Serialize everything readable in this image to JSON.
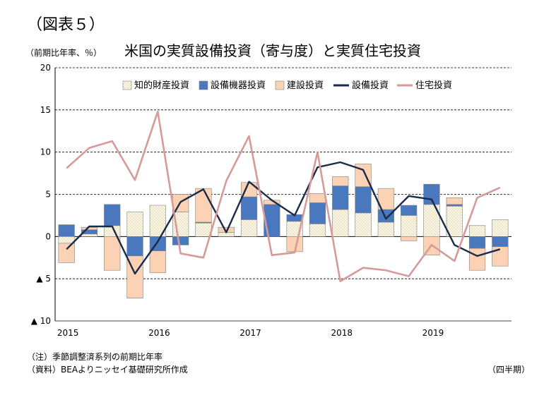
{
  "figure_label": "（図表５）",
  "notes": [
    "（注）季節調整済系列の前期比年率",
    "（資料）BEAよりニッセイ基礎研究所作成"
  ],
  "frequency_label": "（四半期）",
  "colors": {
    "ip": "#fdf8e6",
    "ip_dots": "#a39a62",
    "equipment": "#4a78be",
    "structures": "#fbd2b4",
    "nonres_line": "#1a2a4a",
    "res_line": "#d79a9a",
    "grid": "#000000",
    "bar_border": "#7f7f7f"
  },
  "chart_data": {
    "type": "bar",
    "title": "米国の実質設備投資（寄与度）と実質住宅投資",
    "ylabel": "（前期比年率、％）",
    "ylim": [
      -10,
      20
    ],
    "yticks": [
      20,
      15,
      10,
      5,
      0,
      -5,
      -10
    ],
    "ytick_labels": [
      "20",
      "15",
      "10",
      "5",
      "0",
      "▲ 5",
      "▲ 10"
    ],
    "grid": true,
    "legend_position": "top-right",
    "x": [
      "2015Q1",
      "2015Q2",
      "2015Q3",
      "2015Q4",
      "2016Q1",
      "2016Q2",
      "2016Q3",
      "2016Q4",
      "2017Q1",
      "2017Q2",
      "2017Q3",
      "2017Q4",
      "2018Q1",
      "2018Q2",
      "2018Q3",
      "2018Q4",
      "2019Q1",
      "2019Q2",
      "2019Q3",
      "2019Q4"
    ],
    "year_labels": [
      "2015",
      "2016",
      "2017",
      "2018",
      "2019"
    ],
    "stacked_series": [
      {
        "name": "知的財産投資",
        "key": "ip",
        "values": [
          -0.8,
          0.3,
          1.3,
          2.9,
          3.7,
          2.9,
          1.6,
          0.5,
          2.0,
          0,
          1.8,
          1.5,
          3.2,
          2.8,
          1.7,
          2.5,
          3.8,
          3.6,
          1.3,
          2.0
        ]
      },
      {
        "name": "設備機器投資",
        "key": "equipment",
        "values": [
          1.4,
          0.5,
          2.5,
          -2.3,
          -1.7,
          -1.0,
          0.1,
          0,
          2.7,
          3.8,
          0.8,
          2.5,
          2.8,
          3.1,
          1.5,
          1.2,
          2.4,
          0.2,
          -1.4,
          -1.2
        ]
      },
      {
        "name": "建設投資",
        "key": "structures",
        "values": [
          -2.3,
          0.3,
          -4.0,
          -5.0,
          -2.6,
          2.1,
          4.0,
          0.6,
          1.7,
          0.5,
          -1.8,
          1.1,
          1.1,
          2.7,
          2.5,
          -0.5,
          -2.2,
          0.8,
          -2.6,
          -2.3
        ]
      }
    ],
    "line_series": [
      {
        "name": "設備投資",
        "key": "nonres_line",
        "values": [
          -1.5,
          1.2,
          1.2,
          -4.4,
          -0.6,
          4.1,
          5.6,
          0.5,
          6.5,
          4.3,
          2.5,
          8.2,
          8.8,
          7.9,
          2.1,
          4.8,
          4.4,
          -1.0,
          -2.3,
          -1.5
        ]
      },
      {
        "name": "住宅投資",
        "key": "res_line",
        "values": [
          8.1,
          10.5,
          11.3,
          6.7,
          14.8,
          -2.0,
          -2.5,
          6.6,
          11.9,
          -2.2,
          -1.9,
          10.0,
          -5.3,
          -3.7,
          -4.0,
          -4.7,
          -1.0,
          -2.9,
          4.6,
          5.8
        ]
      }
    ]
  }
}
